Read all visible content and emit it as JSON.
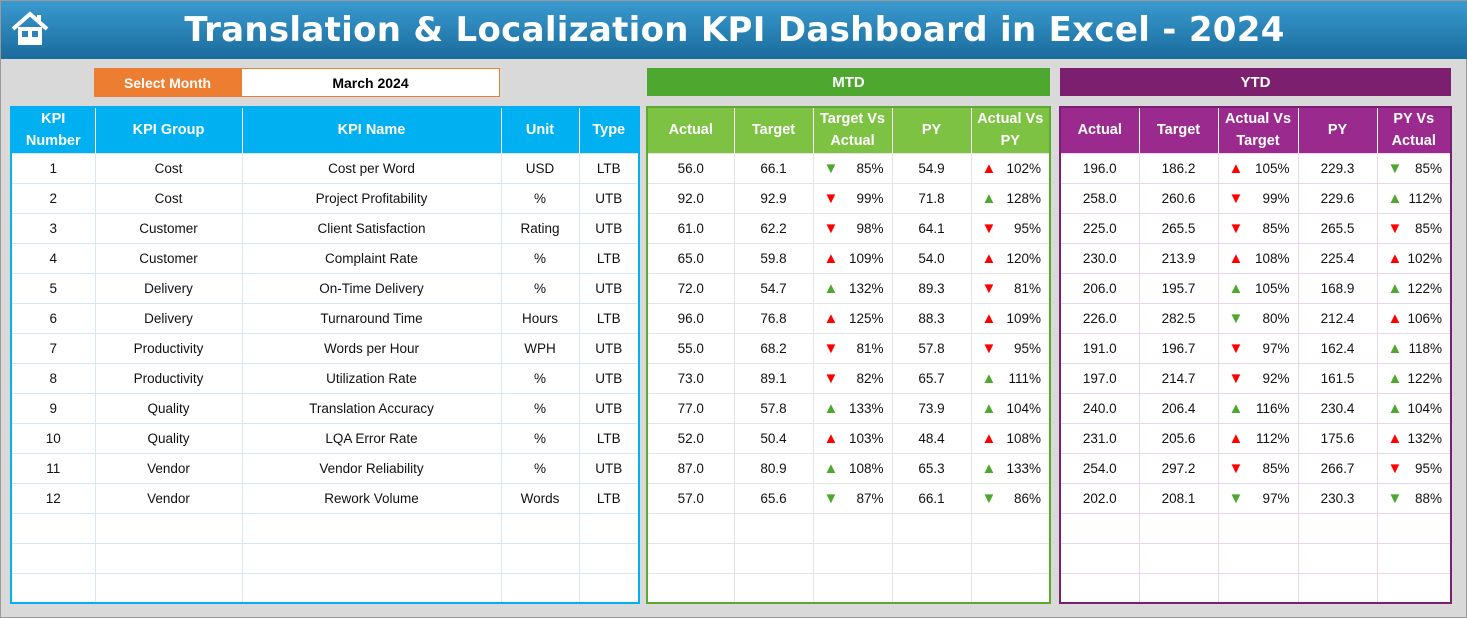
{
  "title": "Translation & Localization KPI Dashboard in Excel - 2024",
  "select_month": {
    "label": "Select Month",
    "value": "March 2024"
  },
  "sections": {
    "mtd": "MTD",
    "ytd": "YTD"
  },
  "colors": {
    "good": "#4ea72e",
    "bad": "#ff0000",
    "kpi_header": "#00b0f0",
    "mtd_header": "#7dc242",
    "ytd_header": "#9a2a8e",
    "select_label": "#ed7d31"
  },
  "kpi_headers": [
    "KPI Number",
    "KPI Group",
    "KPI Name",
    "Unit",
    "Type"
  ],
  "mtd_headers": [
    "Actual",
    "Target",
    "Target Vs Actual",
    "PY",
    "Actual Vs PY"
  ],
  "ytd_headers": [
    "Actual",
    "Target",
    "Actual Vs Target",
    "PY",
    "PY Vs Actual"
  ],
  "rows": [
    {
      "num": "1",
      "group": "Cost",
      "name": "Cost per Word",
      "unit": "USD",
      "type": "LTB",
      "mtd": [
        "56.0",
        "66.1",
        "85%",
        "54.9",
        "102%"
      ],
      "ytd": [
        "196.0",
        "186.2",
        "105%",
        "229.3",
        "85%"
      ]
    },
    {
      "num": "2",
      "group": "Cost",
      "name": "Project Profitability",
      "unit": "%",
      "type": "UTB",
      "mtd": [
        "92.0",
        "92.9",
        "99%",
        "71.8",
        "128%"
      ],
      "ytd": [
        "258.0",
        "260.6",
        "99%",
        "229.6",
        "112%"
      ]
    },
    {
      "num": "3",
      "group": "Customer",
      "name": "Client Satisfaction",
      "unit": "Rating",
      "type": "UTB",
      "mtd": [
        "61.0",
        "62.2",
        "98%",
        "64.1",
        "95%"
      ],
      "ytd": [
        "225.0",
        "265.5",
        "85%",
        "265.5",
        "85%"
      ]
    },
    {
      "num": "4",
      "group": "Customer",
      "name": "Complaint Rate",
      "unit": "%",
      "type": "LTB",
      "mtd": [
        "65.0",
        "59.8",
        "109%",
        "54.0",
        "120%"
      ],
      "ytd": [
        "230.0",
        "213.9",
        "108%",
        "225.4",
        "102%"
      ]
    },
    {
      "num": "5",
      "group": "Delivery",
      "name": "On-Time Delivery",
      "unit": "%",
      "type": "UTB",
      "mtd": [
        "72.0",
        "54.7",
        "132%",
        "89.3",
        "81%"
      ],
      "ytd": [
        "206.0",
        "195.7",
        "105%",
        "168.9",
        "122%"
      ]
    },
    {
      "num": "6",
      "group": "Delivery",
      "name": "Turnaround Time",
      "unit": "Hours",
      "type": "LTB",
      "mtd": [
        "96.0",
        "76.8",
        "125%",
        "88.3",
        "109%"
      ],
      "ytd": [
        "226.0",
        "282.5",
        "80%",
        "212.4",
        "106%"
      ]
    },
    {
      "num": "7",
      "group": "Productivity",
      "name": "Words per Hour",
      "unit": "WPH",
      "type": "UTB",
      "mtd": [
        "55.0",
        "68.2",
        "81%",
        "57.8",
        "95%"
      ],
      "ytd": [
        "191.0",
        "196.7",
        "97%",
        "162.4",
        "118%"
      ]
    },
    {
      "num": "8",
      "group": "Productivity",
      "name": "Utilization Rate",
      "unit": "%",
      "type": "UTB",
      "mtd": [
        "73.0",
        "89.1",
        "82%",
        "65.7",
        "111%"
      ],
      "ytd": [
        "197.0",
        "214.7",
        "92%",
        "161.5",
        "122%"
      ]
    },
    {
      "num": "9",
      "group": "Quality",
      "name": "Translation Accuracy",
      "unit": "%",
      "type": "UTB",
      "mtd": [
        "77.0",
        "57.8",
        "133%",
        "73.9",
        "104%"
      ],
      "ytd": [
        "240.0",
        "206.4",
        "116%",
        "230.4",
        "104%"
      ]
    },
    {
      "num": "10",
      "group": "Quality",
      "name": "LQA Error Rate",
      "unit": "%",
      "type": "LTB",
      "mtd": [
        "52.0",
        "50.4",
        "103%",
        "48.4",
        "108%"
      ],
      "ytd": [
        "231.0",
        "205.6",
        "112%",
        "175.6",
        "132%"
      ]
    },
    {
      "num": "11",
      "group": "Vendor",
      "name": "Vendor Reliability",
      "unit": "%",
      "type": "UTB",
      "mtd": [
        "87.0",
        "80.9",
        "108%",
        "65.3",
        "133%"
      ],
      "ytd": [
        "254.0",
        "297.2",
        "85%",
        "266.7",
        "95%"
      ]
    },
    {
      "num": "12",
      "group": "Vendor",
      "name": "Rework Volume",
      "unit": "Words",
      "type": "LTB",
      "mtd": [
        "57.0",
        "65.6",
        "87%",
        "66.1",
        "86%"
      ],
      "ytd": [
        "202.0",
        "208.1",
        "97%",
        "230.3",
        "88%"
      ]
    }
  ]
}
